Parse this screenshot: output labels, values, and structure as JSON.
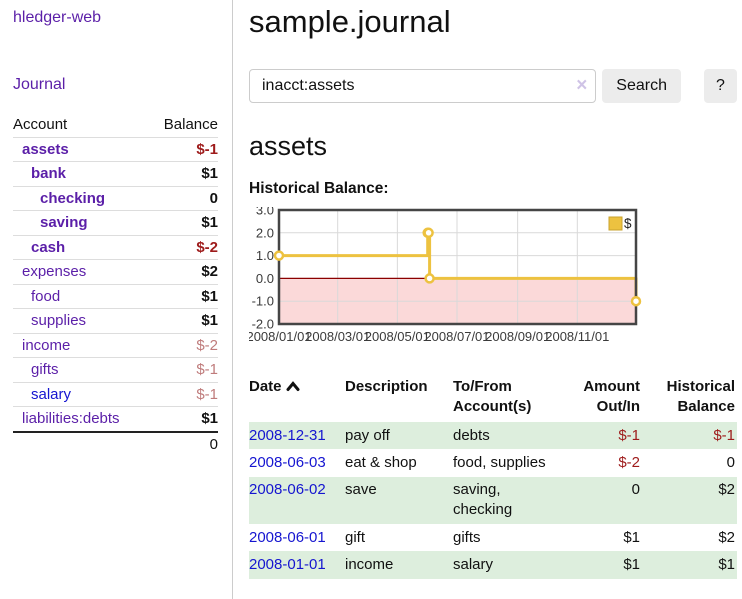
{
  "sidebar": {
    "app_title": "hledger-web",
    "journal_link": "Journal",
    "accounts_table": {
      "headers": {
        "account": "Account",
        "balance": "Balance"
      },
      "rows": [
        {
          "account": "assets",
          "balance": "$-1",
          "indent": 0,
          "bold": true,
          "balance_class": "neg-strong"
        },
        {
          "account": "bank",
          "balance": "$1",
          "indent": 1,
          "bold": true,
          "balance_class": ""
        },
        {
          "account": "checking",
          "balance": "0",
          "indent": 2,
          "bold": true,
          "balance_class": ""
        },
        {
          "account": "saving",
          "balance": "$1",
          "indent": 2,
          "bold": true,
          "balance_class": ""
        },
        {
          "account": "cash",
          "balance": "$-2",
          "indent": 1,
          "bold": true,
          "balance_class": "neg-strong"
        },
        {
          "account": "expenses",
          "balance": "$2",
          "indent": 0,
          "bold": false,
          "balance_class": ""
        },
        {
          "account": "food",
          "balance": "$1",
          "indent": 1,
          "bold": false,
          "balance_class": ""
        },
        {
          "account": "supplies",
          "balance": "$1",
          "indent": 1,
          "bold": false,
          "balance_class": ""
        },
        {
          "account": "income",
          "balance": "$-2",
          "indent": 0,
          "bold": false,
          "balance_class": "neg-muted"
        },
        {
          "account": "gifts",
          "balance": "$-1",
          "indent": 1,
          "bold": false,
          "balance_class": "neg-muted"
        },
        {
          "account": "salary",
          "balance": "$-1",
          "indent": 1,
          "bold": false,
          "balance_class": "neg-muted",
          "link_color": "blue"
        },
        {
          "account": "liabilities:debts",
          "balance": "$1",
          "indent": 0,
          "bold": false,
          "balance_class": ""
        }
      ],
      "total": "0"
    }
  },
  "header": {
    "title": "sample.journal"
  },
  "search": {
    "query": "inacct:assets",
    "clear_icon": "×",
    "search_label": "Search",
    "help_label": "?"
  },
  "account_page": {
    "title": "assets",
    "chart_label": "Historical Balance:"
  },
  "chart_data": {
    "type": "line",
    "step": true,
    "title": "Historical Balance",
    "legend": [
      {
        "label": "$",
        "color": "#edc240"
      }
    ],
    "x_range": [
      "2008-01-01",
      "2008-12-31"
    ],
    "ylim": [
      -2,
      3
    ],
    "yticks": [
      3,
      2,
      1,
      0,
      -1,
      -2
    ],
    "ytick_labels": [
      "3.0",
      "2.0",
      "1.0",
      "0.0",
      "-1.0",
      "-2.0"
    ],
    "xticks": [
      {
        "date": "2008-01-01",
        "label": "2008/01/01"
      },
      {
        "date": "2008-03-01",
        "label": "2008/03/01"
      },
      {
        "date": "2008-05-01",
        "label": "2008/05/01"
      },
      {
        "date": "2008-07-01",
        "label": "2008/07/01"
      },
      {
        "date": "2008-09-01",
        "label": "2008/09/01"
      },
      {
        "date": "2008-11-01",
        "label": "2008/11/01"
      }
    ],
    "series": [
      {
        "name": "$",
        "color": "#edc240",
        "points": [
          [
            "2008-01-01",
            1
          ],
          [
            "2008-06-01",
            2
          ],
          [
            "2008-06-02",
            2
          ],
          [
            "2008-06-03",
            0
          ],
          [
            "2008-12-31",
            -1
          ]
        ]
      }
    ],
    "grid": true,
    "legend_position": "top-right",
    "colors": {
      "grid": "#d9d9d9",
      "border": "#454545",
      "zero_line": "#8b0000",
      "negative_region": "#fbd9d9",
      "tick_text": "#3a3a3a"
    }
  },
  "register": {
    "headers": [
      "Date",
      "Description",
      "To/From Account(s)",
      "Amount Out/In",
      "Historical Balance"
    ],
    "sort_icon": "chevron-up",
    "rows": [
      {
        "date": "2008-12-31",
        "description": "pay off",
        "accounts": "debts",
        "amount": "$-1",
        "balance": "$-1"
      },
      {
        "date": "2008-06-03",
        "description": "eat & shop",
        "accounts": "food, supplies",
        "amount": "$-2",
        "balance": "0"
      },
      {
        "date": "2008-06-02",
        "description": "save",
        "accounts": "saving, checking",
        "amount": "0",
        "balance": "$2"
      },
      {
        "date": "2008-06-01",
        "description": "gift",
        "accounts": "gifts",
        "amount": "$1",
        "balance": "$2"
      },
      {
        "date": "2008-01-01",
        "description": "income",
        "accounts": "salary",
        "amount": "$1",
        "balance": "$1"
      }
    ]
  },
  "colors": {
    "accent_purple": "#5b1fa8",
    "link_blue": "#1515d0",
    "negative_strong": "#9e1b1b",
    "negative_muted": "#bf7b7b",
    "row_stripe_green": "#ddeedd",
    "series_gold": "#edc240"
  }
}
